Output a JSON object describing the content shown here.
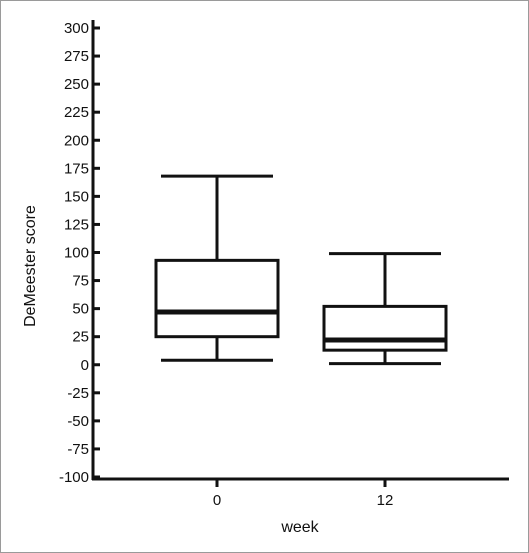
{
  "chart_data": {
    "type": "box",
    "title": "",
    "xlabel": "week",
    "ylabel": "DeMeester score",
    "ylim": [
      -100,
      300
    ],
    "y_ticks": [
      300,
      275,
      250,
      225,
      200,
      175,
      150,
      125,
      100,
      75,
      50,
      25,
      0,
      -25,
      -50,
      -75,
      -100
    ],
    "categories": [
      "0",
      "12"
    ],
    "boxes": [
      {
        "category": "0",
        "min": 4,
        "q1": 25,
        "median": 47,
        "q3": 93,
        "max": 168
      },
      {
        "category": "12",
        "min": 1,
        "q1": 13,
        "median": 22,
        "q3": 52,
        "max": 99
      }
    ],
    "grid": false,
    "legend": "none",
    "colors": {
      "stroke": "#111111",
      "background": "#ffffff",
      "frame": "#9a9a9a"
    }
  }
}
